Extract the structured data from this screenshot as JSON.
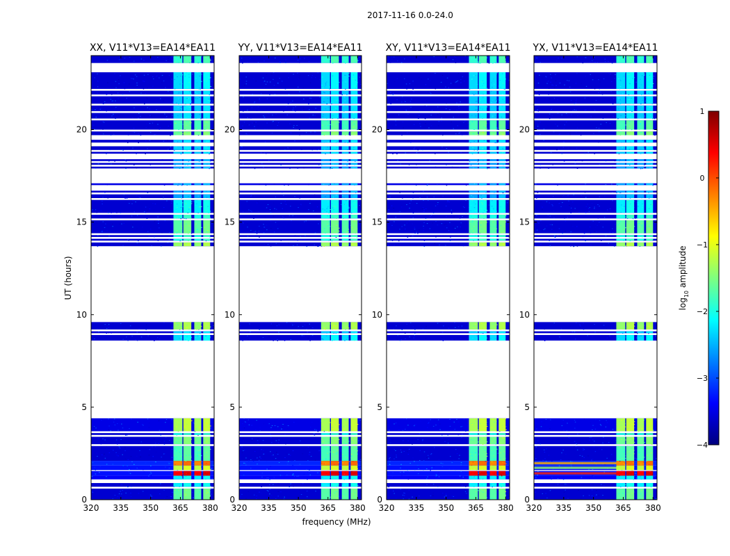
{
  "figure": {
    "suptitle": "2017-11-16 0.0-24.0",
    "shared_xlabel": "frequency (MHz)",
    "shared_ylabel": "UT (hours)"
  },
  "colorbar": {
    "label_prefix": "log",
    "label_sub": "10",
    "label_suffix": " amplitude",
    "vmin": -4,
    "vmax": 1,
    "ticks": [
      -4,
      -3,
      -2,
      -1,
      0,
      1
    ],
    "tick_labels": [
      "−4",
      "−3",
      "−2",
      "−1",
      "0",
      "1"
    ],
    "colormap": "jet",
    "jet_stops": [
      "#00007f",
      "#0000ff",
      "#007fff",
      "#00ffff",
      "#7fff7f",
      "#ffff00",
      "#ff7f00",
      "#ff0000",
      "#7f0000"
    ]
  },
  "chart_data": [
    {
      "type": "heatmap",
      "title": "XX, V11*V13=EA14*EA11",
      "xlim": [
        320,
        382
      ],
      "ylim": [
        0,
        24
      ],
      "xticks": [
        320,
        335,
        350,
        365,
        380
      ],
      "yticks": [
        0,
        5,
        10,
        15,
        20
      ],
      "show_ylabel": true,
      "show_xlabel": false,
      "low_freq_hot": false
    },
    {
      "type": "heatmap",
      "title": "YY, V11*V13=EA14*EA11",
      "xlim": [
        320,
        382
      ],
      "ylim": [
        0,
        24
      ],
      "xticks": [
        320,
        335,
        350,
        365,
        380
      ],
      "yticks": [
        0,
        5,
        10,
        15,
        20
      ],
      "show_ylabel": false,
      "show_xlabel": true,
      "low_freq_hot": false
    },
    {
      "type": "heatmap",
      "title": "XY, V11*V13=EA14*EA11",
      "xlim": [
        320,
        382
      ],
      "ylim": [
        0,
        24
      ],
      "xticks": [
        320,
        335,
        350,
        365,
        380
      ],
      "yticks": [
        0,
        5,
        10,
        15,
        20
      ],
      "show_ylabel": false,
      "show_xlabel": false,
      "low_freq_hot": false
    },
    {
      "type": "heatmap",
      "title": "YX, V11*V13=EA14*EA11",
      "xlim": [
        320,
        382
      ],
      "ylim": [
        0,
        24
      ],
      "xticks": [
        320,
        335,
        350,
        365,
        380
      ],
      "yticks": [
        0,
        5,
        10,
        15,
        20
      ],
      "show_ylabel": false,
      "show_xlabel": false,
      "low_freq_hot": true
    }
  ],
  "time_segments": [
    {
      "t0": 0.0,
      "t1": 0.6,
      "bg": -3.6,
      "rfi": -1.7
    },
    {
      "t0": 0.7,
      "t1": 0.9,
      "bg": -3.6,
      "rfi": -2.2
    },
    {
      "t0": 1.1,
      "t1": 1.3,
      "bg": -3.4,
      "rfi": -2.2
    },
    {
      "t0": 1.3,
      "t1": 1.55,
      "bg": -3.3,
      "rfi": 0.4
    },
    {
      "t0": 1.6,
      "t1": 1.85,
      "bg": -3.3,
      "rfi": -1.2
    },
    {
      "t0": 1.85,
      "t1": 2.1,
      "bg": -3.2,
      "rfi": -0.3
    },
    {
      "t0": 2.1,
      "t1": 2.9,
      "bg": -3.6,
      "rfi": -1.8
    },
    {
      "t0": 3.0,
      "t1": 3.4,
      "bg": -3.6,
      "rfi": -1.6
    },
    {
      "t0": 3.5,
      "t1": 3.6,
      "bg": -3.6,
      "rfi": -2.0
    },
    {
      "t0": 3.7,
      "t1": 4.4,
      "bg": -3.5,
      "rfi": -1.3
    },
    {
      "t0": 8.6,
      "t1": 8.9,
      "bg": -3.6,
      "rfi": -2.3
    },
    {
      "t0": 9.0,
      "t1": 9.1,
      "bg": -3.6,
      "rfi": -2.4
    },
    {
      "t0": 9.2,
      "t1": 9.6,
      "bg": -3.6,
      "rfi": -1.4
    },
    {
      "t0": 13.7,
      "t1": 13.9,
      "bg": -3.6,
      "rfi": -1.4
    },
    {
      "t0": 14.0,
      "t1": 14.1,
      "bg": -3.6,
      "rfi": -2.0
    },
    {
      "t0": 14.2,
      "t1": 14.3,
      "bg": -3.6,
      "rfi": -2.0
    },
    {
      "t0": 14.4,
      "t1": 15.1,
      "bg": -3.6,
      "rfi": -1.7
    },
    {
      "t0": 15.2,
      "t1": 15.4,
      "bg": -3.6,
      "rfi": -2.0
    },
    {
      "t0": 15.5,
      "t1": 16.2,
      "bg": -3.6,
      "rfi": -2.2
    },
    {
      "t0": 16.3,
      "t1": 16.5,
      "bg": -3.6,
      "rfi": -2.6
    },
    {
      "t0": 16.6,
      "t1": 16.7,
      "bg": -3.6,
      "rfi": -2.6
    },
    {
      "t0": 17.0,
      "t1": 17.1,
      "bg": -3.5,
      "rfi": -2.6
    },
    {
      "t0": 17.9,
      "t1": 18.0,
      "bg": -3.6,
      "rfi": -2.6
    },
    {
      "t0": 18.1,
      "t1": 18.2,
      "bg": -3.6,
      "rfi": -2.6
    },
    {
      "t0": 18.3,
      "t1": 18.4,
      "bg": -3.6,
      "rfi": -2.6
    },
    {
      "t0": 18.7,
      "t1": 18.8,
      "bg": -3.6,
      "rfi": -2.4
    },
    {
      "t0": 18.9,
      "t1": 19.1,
      "bg": -3.6,
      "rfi": -2.4
    },
    {
      "t0": 19.3,
      "t1": 19.45,
      "bg": -3.6,
      "rfi": -2.4
    },
    {
      "t0": 19.7,
      "t1": 19.9,
      "bg": -3.6,
      "rfi": -1.6
    },
    {
      "t0": 20.0,
      "t1": 20.5,
      "bg": -3.6,
      "rfi": -1.8
    },
    {
      "t0": 20.6,
      "t1": 20.9,
      "bg": -3.6,
      "rfi": -2.4
    },
    {
      "t0": 21.0,
      "t1": 21.3,
      "bg": -3.6,
      "rfi": -2.4
    },
    {
      "t0": 21.4,
      "t1": 21.8,
      "bg": -3.6,
      "rfi": -2.4
    },
    {
      "t0": 21.9,
      "t1": 22.1,
      "bg": -3.6,
      "rfi": -2.4
    },
    {
      "t0": 22.2,
      "t1": 23.1,
      "bg": -3.6,
      "rfi": -2.3
    },
    {
      "t0": 23.6,
      "t1": 24.0,
      "bg": -3.6,
      "rfi": -1.9
    }
  ],
  "rfi_bands_mhz": [
    [
      361.5,
      366.0
    ],
    [
      366.5,
      370.5
    ],
    [
      372.0,
      375.5
    ],
    [
      376.5,
      380.0
    ]
  ]
}
